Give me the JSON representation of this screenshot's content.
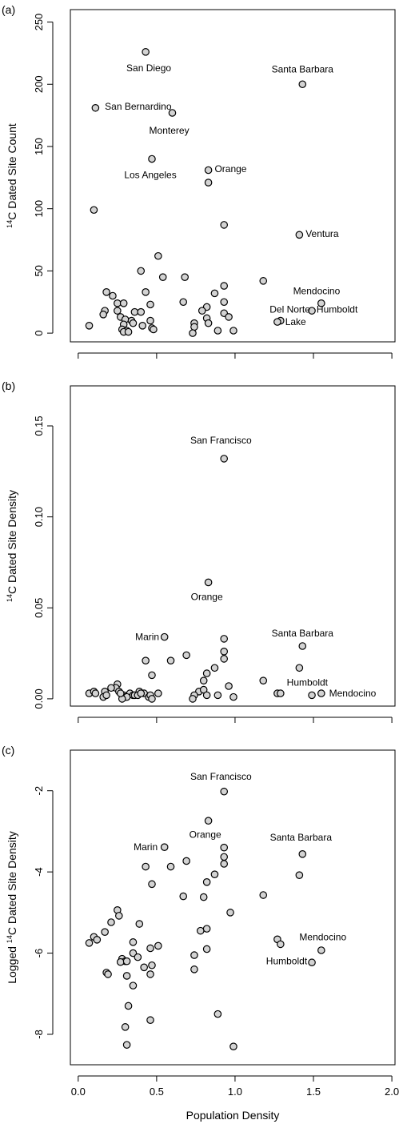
{
  "chart_data": [
    {
      "panel_label": "(a)",
      "type": "scatter",
      "xlabel": "",
      "ylabel": {
        "sup": "14",
        "text": "C Dated Site Count"
      },
      "xlim": [
        -0.05,
        2.02
      ],
      "ylim": [
        -7,
        260
      ],
      "yticks": [
        0,
        50,
        100,
        150,
        200,
        250
      ],
      "ytick_labels": [
        "0",
        "50",
        "100",
        "150",
        "200",
        "250"
      ],
      "xticks": [
        0.0,
        0.5,
        1.0,
        1.5,
        2.0
      ],
      "show_x_tick_labels": false,
      "grid": false,
      "points": [
        [
          0.43,
          226
        ],
        [
          1.43,
          200
        ],
        [
          0.11,
          181
        ],
        [
          0.6,
          177
        ],
        [
          0.47,
          140
        ],
        [
          0.83,
          131
        ],
        [
          0.83,
          121
        ],
        [
          0.1,
          99
        ],
        [
          0.93,
          87
        ],
        [
          1.41,
          79
        ],
        [
          0.51,
          62
        ],
        [
          0.4,
          50
        ],
        [
          0.54,
          45
        ],
        [
          0.68,
          45
        ],
        [
          1.18,
          42
        ],
        [
          0.93,
          38
        ],
        [
          0.18,
          33
        ],
        [
          0.43,
          33
        ],
        [
          0.87,
          32
        ],
        [
          0.67,
          25
        ],
        [
          0.93,
          25
        ],
        [
          0.22,
          30
        ],
        [
          0.25,
          24
        ],
        [
          0.29,
          24
        ],
        [
          1.55,
          24
        ],
        [
          0.46,
          23
        ],
        [
          0.82,
          21
        ],
        [
          0.79,
          18
        ],
        [
          0.17,
          18
        ],
        [
          0.25,
          18
        ],
        [
          0.36,
          17
        ],
        [
          0.4,
          17
        ],
        [
          0.16,
          15
        ],
        [
          0.93,
          16
        ],
        [
          1.49,
          18
        ],
        [
          0.27,
          13
        ],
        [
          0.3,
          11
        ],
        [
          0.96,
          13
        ],
        [
          0.34,
          10
        ],
        [
          0.82,
          12
        ],
        [
          1.29,
          10
        ],
        [
          0.46,
          10
        ],
        [
          0.35,
          8
        ],
        [
          0.74,
          8
        ],
        [
          0.83,
          8
        ],
        [
          1.27,
          9
        ],
        [
          0.29,
          7
        ],
        [
          0.41,
          6
        ],
        [
          0.74,
          5
        ],
        [
          0.07,
          6
        ],
        [
          0.47,
          4
        ],
        [
          0.28,
          3
        ],
        [
          0.48,
          3
        ],
        [
          0.31,
          2
        ],
        [
          0.29,
          1
        ],
        [
          0.32,
          1
        ],
        [
          0.73,
          0
        ],
        [
          0.89,
          2
        ],
        [
          0.99,
          2
        ]
      ],
      "annotations": [
        {
          "text": "San Diego",
          "x": 0.45,
          "y": 213,
          "anchor": "middle"
        },
        {
          "text": "Santa Barbara",
          "x": 1.43,
          "y": 212,
          "anchor": "middle"
        },
        {
          "text": "San Bernardino",
          "x": 0.17,
          "y": 182,
          "anchor": "start"
        },
        {
          "text": "Monterey",
          "x": 0.58,
          "y": 163,
          "anchor": "middle"
        },
        {
          "text": "Los Angeles",
          "x": 0.46,
          "y": 127,
          "anchor": "middle"
        },
        {
          "text": "Orange",
          "x": 0.87,
          "y": 132,
          "anchor": "start"
        },
        {
          "text": "Ventura",
          "x": 1.45,
          "y": 80,
          "anchor": "start"
        },
        {
          "text": "Mendocino",
          "x": 1.52,
          "y": 34,
          "anchor": "middle"
        },
        {
          "text": "Del Norte",
          "x": 1.35,
          "y": 19,
          "anchor": "middle"
        },
        {
          "text": "Humboldt",
          "x": 1.52,
          "y": 19,
          "anchor": "start"
        },
        {
          "text": "Lake",
          "x": 1.32,
          "y": 9,
          "anchor": "start"
        }
      ]
    },
    {
      "panel_label": "(b)",
      "type": "scatter",
      "xlabel": "",
      "ylabel": {
        "sup": "14",
        "text": "C Dated Site Density"
      },
      "xlim": [
        -0.05,
        2.02
      ],
      "ylim": [
        -0.004,
        0.172
      ],
      "yticks": [
        0.0,
        0.05,
        0.1,
        0.15
      ],
      "ytick_labels": [
        "0.00",
        "0.05",
        "0.10",
        "0.15"
      ],
      "xticks": [
        0.0,
        0.5,
        1.0,
        1.5,
        2.0
      ],
      "show_x_tick_labels": false,
      "grid": false,
      "points": [
        [
          0.93,
          0.132
        ],
        [
          0.83,
          0.064
        ],
        [
          0.55,
          0.034
        ],
        [
          0.93,
          0.033
        ],
        [
          1.43,
          0.029
        ],
        [
          0.93,
          0.026
        ],
        [
          0.69,
          0.024
        ],
        [
          0.93,
          0.022
        ],
        [
          0.43,
          0.021
        ],
        [
          0.59,
          0.021
        ],
        [
          1.41,
          0.017
        ],
        [
          0.87,
          0.017
        ],
        [
          0.82,
          0.014
        ],
        [
          0.47,
          0.013
        ],
        [
          1.18,
          0.01
        ],
        [
          0.8,
          0.01
        ],
        [
          0.96,
          0.007
        ],
        [
          0.25,
          0.008
        ],
        [
          0.24,
          0.006
        ],
        [
          0.21,
          0.006
        ],
        [
          0.77,
          0.004
        ],
        [
          0.8,
          0.005
        ],
        [
          0.39,
          0.004
        ],
        [
          0.33,
          0.003
        ],
        [
          0.26,
          0.004
        ],
        [
          0.07,
          0.003
        ],
        [
          0.1,
          0.004
        ],
        [
          0.11,
          0.003
        ],
        [
          0.17,
          0.004
        ],
        [
          0.42,
          0.003
        ],
        [
          0.51,
          0.003
        ],
        [
          1.27,
          0.003
        ],
        [
          1.29,
          0.003
        ],
        [
          1.55,
          0.003
        ],
        [
          0.74,
          0.002
        ],
        [
          0.82,
          0.002
        ],
        [
          0.89,
          0.002
        ],
        [
          0.99,
          0.001
        ],
        [
          0.73,
          0.0
        ],
        [
          1.49,
          0.002
        ],
        [
          0.29,
          0.002
        ],
        [
          0.3,
          0.001
        ],
        [
          0.31,
          0.001
        ],
        [
          0.35,
          0.002
        ],
        [
          0.36,
          0.002
        ],
        [
          0.45,
          0.001
        ],
        [
          0.46,
          0.002
        ],
        [
          0.47,
          0.0
        ],
        [
          0.28,
          0.0
        ],
        [
          0.16,
          0.001
        ],
        [
          0.18,
          0.002
        ],
        [
          0.38,
          0.002
        ],
        [
          0.4,
          0.003
        ],
        [
          0.27,
          0.003
        ]
      ],
      "annotations": [
        {
          "text": "San Francisco",
          "x": 0.91,
          "y": 0.142,
          "anchor": "middle"
        },
        {
          "text": "Orange",
          "x": 0.82,
          "y": 0.056,
          "anchor": "middle"
        },
        {
          "text": "Marin",
          "x": 0.44,
          "y": 0.034,
          "anchor": "middle"
        },
        {
          "text": "Santa Barbara",
          "x": 1.43,
          "y": 0.036,
          "anchor": "middle"
        },
        {
          "text": "Humboldt",
          "x": 1.33,
          "y": 0.009,
          "anchor": "start"
        },
        {
          "text": "Mendocino",
          "x": 1.6,
          "y": 0.003,
          "anchor": "start"
        }
      ]
    },
    {
      "panel_label": "(c)",
      "type": "scatter",
      "xlabel": "Population Density",
      "ylabel": {
        "prefix": "Logged ",
        "sup": "14",
        "text": "C Dated Site Density"
      },
      "xlim": [
        -0.05,
        2.02
      ],
      "ylim": [
        -8.75,
        -1.0
      ],
      "yticks": [
        -2,
        -4,
        -6,
        -8
      ],
      "ytick_labels": [
        "-2",
        "-4",
        "-6",
        "-8"
      ],
      "xticks": [
        0.0,
        0.5,
        1.0,
        1.5,
        2.0
      ],
      "xtick_labels": [
        "0.0",
        "0.5",
        "1.0",
        "1.5",
        "2.0"
      ],
      "show_x_tick_labels": true,
      "grid": false,
      "points": [
        [
          0.93,
          -2.02
        ],
        [
          0.83,
          -2.74
        ],
        [
          0.55,
          -3.39
        ],
        [
          0.93,
          -3.4
        ],
        [
          0.93,
          -3.63
        ],
        [
          0.93,
          -3.8
        ],
        [
          1.43,
          -3.56
        ],
        [
          0.69,
          -3.73
        ],
        [
          0.43,
          -3.87
        ],
        [
          0.59,
          -3.87
        ],
        [
          0.87,
          -4.06
        ],
        [
          1.41,
          -4.08
        ],
        [
          0.82,
          -4.25
        ],
        [
          0.47,
          -4.3
        ],
        [
          0.67,
          -4.6
        ],
        [
          0.8,
          -4.62
        ],
        [
          1.18,
          -4.57
        ],
        [
          0.25,
          -4.94
        ],
        [
          0.26,
          -5.08
        ],
        [
          0.97,
          -5.0
        ],
        [
          0.39,
          -5.28
        ],
        [
          0.21,
          -5.24
        ],
        [
          0.17,
          -5.48
        ],
        [
          0.78,
          -5.45
        ],
        [
          0.82,
          -5.4
        ],
        [
          0.1,
          -5.6
        ],
        [
          0.12,
          -5.67
        ],
        [
          0.07,
          -5.75
        ],
        [
          0.35,
          -5.73
        ],
        [
          0.51,
          -5.82
        ],
        [
          0.46,
          -5.88
        ],
        [
          0.82,
          -5.9
        ],
        [
          1.27,
          -5.66
        ],
        [
          1.29,
          -5.78
        ],
        [
          1.55,
          -5.93
        ],
        [
          0.35,
          -6.0
        ],
        [
          0.38,
          -6.1
        ],
        [
          0.28,
          -6.14
        ],
        [
          0.3,
          -6.2
        ],
        [
          0.27,
          -6.22
        ],
        [
          0.31,
          -6.2
        ],
        [
          0.47,
          -6.3
        ],
        [
          0.42,
          -6.35
        ],
        [
          0.74,
          -6.05
        ],
        [
          1.49,
          -6.23
        ],
        [
          0.18,
          -6.48
        ],
        [
          0.19,
          -6.52
        ],
        [
          0.31,
          -6.56
        ],
        [
          0.46,
          -6.52
        ],
        [
          0.74,
          -6.4
        ],
        [
          0.35,
          -6.8
        ],
        [
          0.32,
          -7.3
        ],
        [
          0.46,
          -7.65
        ],
        [
          0.3,
          -7.82
        ],
        [
          0.31,
          -8.26
        ],
        [
          0.89,
          -7.5
        ],
        [
          0.99,
          -8.3
        ]
      ],
      "annotations": [
        {
          "text": "San Francisco",
          "x": 0.91,
          "y": -1.65,
          "anchor": "middle"
        },
        {
          "text": "Orange",
          "x": 0.81,
          "y": -3.08,
          "anchor": "middle"
        },
        {
          "text": "Marin",
          "x": 0.43,
          "y": -3.39,
          "anchor": "middle"
        },
        {
          "text": "Santa Barbara",
          "x": 1.42,
          "y": -3.15,
          "anchor": "middle"
        },
        {
          "text": "Mendocino",
          "x": 1.56,
          "y": -5.6,
          "anchor": "middle"
        },
        {
          "text": "Humboldt",
          "x": 1.46,
          "y": -6.2,
          "anchor": "end"
        }
      ]
    }
  ]
}
